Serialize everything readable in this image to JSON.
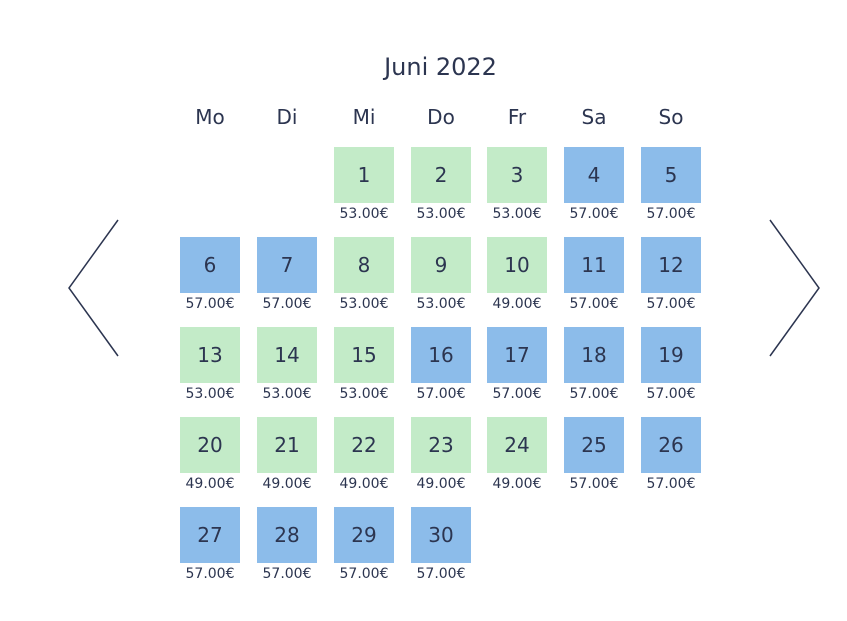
{
  "calendar": {
    "month_title": "Juni 2022",
    "weekdays": [
      "Mo",
      "Di",
      "Mi",
      "Do",
      "Fr",
      "Sa",
      "So"
    ],
    "colors": {
      "green": "#c3ebc8",
      "blue": "#8cbcea",
      "text": "#2c3550"
    },
    "prev_icon": "chevron-left-icon",
    "next_icon": "chevron-right-icon",
    "days": [
      {
        "day": "1",
        "price": "53.00€",
        "color": "green"
      },
      {
        "day": "2",
        "price": "53.00€",
        "color": "green"
      },
      {
        "day": "3",
        "price": "53.00€",
        "color": "green"
      },
      {
        "day": "4",
        "price": "57.00€",
        "color": "blue"
      },
      {
        "day": "5",
        "price": "57.00€",
        "color": "blue"
      },
      {
        "day": "6",
        "price": "57.00€",
        "color": "blue"
      },
      {
        "day": "7",
        "price": "57.00€",
        "color": "blue"
      },
      {
        "day": "8",
        "price": "53.00€",
        "color": "green"
      },
      {
        "day": "9",
        "price": "53.00€",
        "color": "green"
      },
      {
        "day": "10",
        "price": "49.00€",
        "color": "green"
      },
      {
        "day": "11",
        "price": "57.00€",
        "color": "blue"
      },
      {
        "day": "12",
        "price": "57.00€",
        "color": "blue"
      },
      {
        "day": "13",
        "price": "53.00€",
        "color": "green"
      },
      {
        "day": "14",
        "price": "53.00€",
        "color": "green"
      },
      {
        "day": "15",
        "price": "53.00€",
        "color": "green"
      },
      {
        "day": "16",
        "price": "57.00€",
        "color": "blue"
      },
      {
        "day": "17",
        "price": "57.00€",
        "color": "blue"
      },
      {
        "day": "18",
        "price": "57.00€",
        "color": "blue"
      },
      {
        "day": "19",
        "price": "57.00€",
        "color": "blue"
      },
      {
        "day": "20",
        "price": "49.00€",
        "color": "green"
      },
      {
        "day": "21",
        "price": "49.00€",
        "color": "green"
      },
      {
        "day": "22",
        "price": "49.00€",
        "color": "green"
      },
      {
        "day": "23",
        "price": "49.00€",
        "color": "green"
      },
      {
        "day": "24",
        "price": "49.00€",
        "color": "green"
      },
      {
        "day": "25",
        "price": "57.00€",
        "color": "blue"
      },
      {
        "day": "26",
        "price": "57.00€",
        "color": "blue"
      },
      {
        "day": "27",
        "price": "57.00€",
        "color": "blue"
      },
      {
        "day": "28",
        "price": "57.00€",
        "color": "blue"
      },
      {
        "day": "29",
        "price": "57.00€",
        "color": "blue"
      },
      {
        "day": "30",
        "price": "57.00€",
        "color": "blue"
      }
    ]
  }
}
